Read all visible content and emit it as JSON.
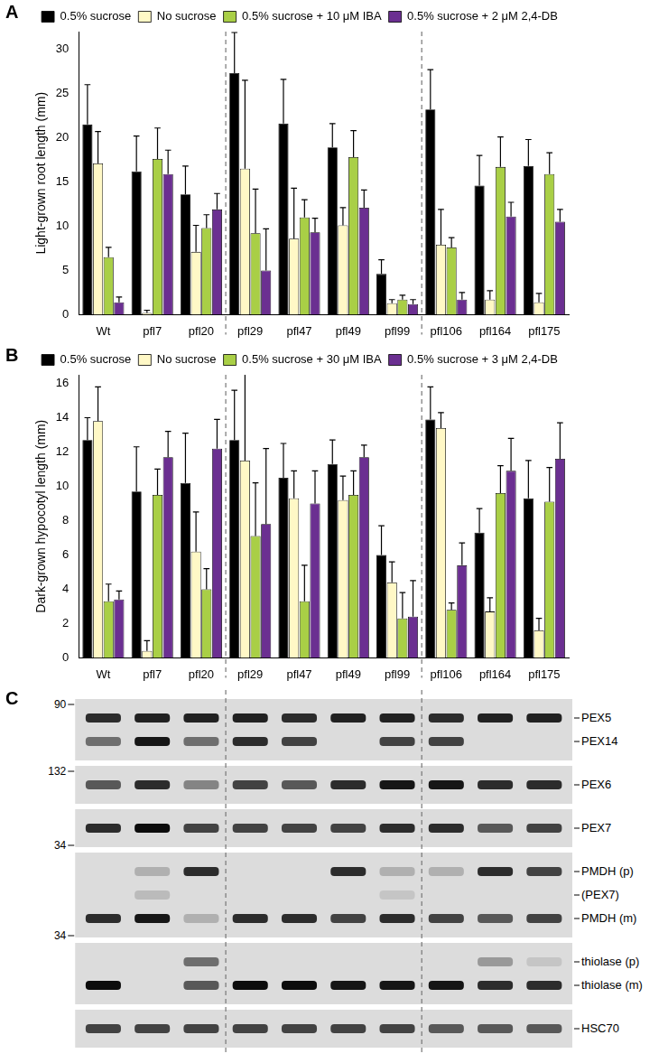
{
  "chart_data": [
    {
      "type": "bar",
      "panel": "A",
      "y_label": "Light-grown root length (mm)",
      "categories": [
        "Wt",
        "pfl7",
        "pfl20",
        "pfl29",
        "pfl47",
        "pfl49",
        "pfl99",
        "pfl106",
        "pfl164",
        "pfl175"
      ],
      "series": [
        {
          "name": "0.5% sucrose",
          "color": "#000000",
          "values": [
            21.5,
            16.2,
            13.6,
            27.3,
            21.6,
            18.9,
            4.6,
            23.2,
            14.6,
            16.8
          ],
          "errors": [
            4.5,
            4.0,
            3.2,
            4.6,
            5.0,
            2.7,
            1.6,
            4.5,
            3.4,
            3.0
          ]
        },
        {
          "name": "No sucrose",
          "color": "#fff8c6",
          "values": [
            17.1,
            0.2,
            7.1,
            16.5,
            8.6,
            10.1,
            1.3,
            7.9,
            1.7,
            1.4
          ],
          "errors": [
            3.6,
            0.3,
            3.0,
            10.0,
            5.7,
            2.0,
            0.4,
            4.0,
            1.0,
            1.0
          ]
        },
        {
          "name": "0.5% sucrose + 10 μM IBA",
          "color": "#a9cf46",
          "values": [
            6.5,
            17.6,
            9.8,
            9.2,
            11.0,
            17.8,
            1.7,
            7.6,
            16.7,
            15.9
          ],
          "errors": [
            1.1,
            3.5,
            1.5,
            5.0,
            2.0,
            3.0,
            0.5,
            1.1,
            3.4,
            2.4
          ]
        },
        {
          "name": "0.5% sucrose + 2 μM 2,4-DB",
          "color": "#6b2f91",
          "values": [
            1.4,
            15.9,
            11.9,
            5.0,
            9.3,
            12.1,
            1.2,
            1.7,
            11.1,
            10.5
          ],
          "errors": [
            0.6,
            2.7,
            1.8,
            4.7,
            1.6,
            2.0,
            0.5,
            0.8,
            1.6,
            1.4
          ]
        }
      ],
      "ylim": [
        0,
        32
      ],
      "yticks": [
        0,
        5,
        10,
        15,
        20,
        25,
        30
      ],
      "grid": false,
      "legend": "top"
    },
    {
      "type": "bar",
      "panel": "B",
      "y_label": "Dark-grown hypocotyl length (mm)",
      "categories": [
        "Wt",
        "pfl7",
        "pfl20",
        "pfl29",
        "pfl47",
        "pfl49",
        "pfl99",
        "pfl106",
        "pfl164",
        "pfl175"
      ],
      "series": [
        {
          "name": "0.5% sucrose",
          "color": "#000000",
          "values": [
            12.7,
            9.7,
            10.2,
            12.7,
            10.5,
            11.3,
            6.0,
            13.9,
            7.3,
            9.3
          ],
          "errors": [
            1.3,
            2.6,
            2.9,
            2.9,
            2.0,
            1.4,
            1.7,
            1.9,
            1.4,
            2.2
          ]
        },
        {
          "name": "No sucrose",
          "color": "#fff8c6",
          "values": [
            13.8,
            0.4,
            6.2,
            11.5,
            9.3,
            9.2,
            4.4,
            13.4,
            2.7,
            1.6
          ],
          "errors": [
            2.0,
            0.6,
            2.3,
            5.1,
            1.6,
            1.4,
            1.2,
            0.9,
            0.8,
            0.7
          ]
        },
        {
          "name": "0.5% sucrose + 30 μM IBA",
          "color": "#a9cf46",
          "values": [
            3.3,
            9.5,
            4.0,
            7.1,
            3.3,
            9.5,
            2.3,
            2.8,
            9.6,
            9.1
          ],
          "errors": [
            1.0,
            1.5,
            1.2,
            3.1,
            2.1,
            1.4,
            1.5,
            0.4,
            1.6,
            2.0
          ]
        },
        {
          "name": "0.5% sucrose + 3 μM 2,4-DB",
          "color": "#6b2f91",
          "values": [
            3.4,
            11.7,
            12.2,
            7.8,
            9.0,
            11.7,
            2.4,
            5.4,
            10.9,
            11.6
          ],
          "errors": [
            0.5,
            1.5,
            1.7,
            4.4,
            1.9,
            0.7,
            2.1,
            1.3,
            1.9,
            2.1
          ]
        }
      ],
      "ylim": [
        0,
        16.5
      ],
      "yticks": [
        0,
        2,
        4,
        6,
        8,
        10,
        12,
        14,
        16
      ],
      "grid": false,
      "legend": "top"
    }
  ],
  "blot": {
    "panel": "C",
    "markers": [
      90,
      132,
      34,
      34
    ],
    "strips": [
      {
        "bands": [
          {
            "label": "PEX5",
            "intensity": [
              0.8,
              0.85,
              0.85,
              0.85,
              0.8,
              0.85,
              0.85,
              0.8,
              0.85,
              0.85
            ]
          },
          {
            "label": "PEX14",
            "intensity": [
              0.5,
              0.9,
              0.5,
              0.8,
              0.7,
              0,
              0.7,
              0.7,
              0,
              0
            ]
          }
        ]
      },
      {
        "bands": [
          {
            "label": "PEX6",
            "intensity": [
              0.6,
              0.8,
              0.4,
              0.7,
              0.6,
              0.8,
              0.9,
              0.9,
              0.8,
              0.8
            ]
          }
        ]
      },
      {
        "bands": [
          {
            "label": "PEX7",
            "intensity": [
              0.8,
              0.95,
              0.7,
              0.7,
              0.7,
              0.7,
              0.8,
              0.8,
              0.6,
              0.7
            ]
          }
        ]
      },
      {
        "bands": [
          {
            "label": "PMDH (p)",
            "intensity": [
              0,
              0.2,
              0.8,
              0,
              0,
              0.8,
              0.2,
              0.2,
              0.8,
              0.7
            ]
          },
          {
            "label": "(PEX7)",
            "intensity": [
              0,
              0.15,
              0,
              0,
              0,
              0,
              0.1,
              0,
              0,
              0
            ]
          },
          {
            "label": "PMDH (m)",
            "intensity": [
              0.8,
              0.9,
              0.2,
              0.8,
              0.8,
              0.7,
              0.8,
              0.7,
              0.6,
              0.7
            ]
          }
        ]
      },
      {
        "bands": [
          {
            "label": "thiolase (p)",
            "intensity": [
              0,
              0,
              0.5,
              0,
              0,
              0,
              0,
              0,
              0.3,
              0.1
            ]
          },
          {
            "label": "thiolase (m)",
            "intensity": [
              0.95,
              0,
              0.6,
              0.95,
              0.95,
              0.9,
              0.9,
              0.9,
              0.8,
              0.8
            ]
          }
        ]
      },
      {
        "bands": [
          {
            "label": "HSC70",
            "intensity": [
              0.7,
              0.7,
              0.7,
              0.7,
              0.7,
              0.7,
              0.7,
              0.6,
              0.6,
              0.6
            ]
          }
        ]
      }
    ]
  }
}
